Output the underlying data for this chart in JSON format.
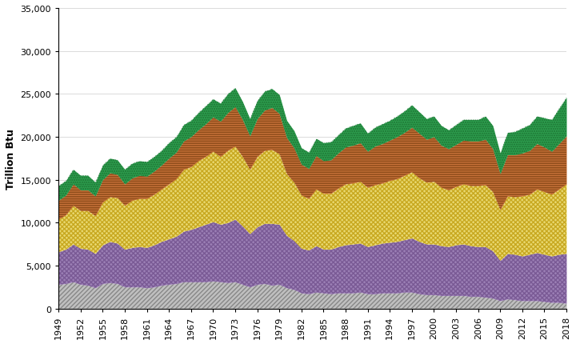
{
  "years": [
    1949,
    1950,
    1951,
    1952,
    1953,
    1954,
    1955,
    1956,
    1957,
    1958,
    1959,
    1960,
    1961,
    1962,
    1963,
    1964,
    1965,
    1966,
    1967,
    1968,
    1969,
    1970,
    1971,
    1972,
    1973,
    1974,
    1975,
    1976,
    1977,
    1978,
    1979,
    1980,
    1981,
    1982,
    1983,
    1984,
    1985,
    1986,
    1987,
    1988,
    1989,
    1990,
    1991,
    1992,
    1993,
    1994,
    1995,
    1996,
    1997,
    1998,
    1999,
    2000,
    2001,
    2002,
    2003,
    2004,
    2005,
    2006,
    2007,
    2008,
    2009,
    2010,
    2011,
    2012,
    2013,
    2014,
    2015,
    2016,
    2017,
    2018
  ],
  "coal": [
    2800,
    2900,
    3100,
    2800,
    2700,
    2400,
    2900,
    3000,
    2900,
    2500,
    2500,
    2500,
    2400,
    2500,
    2700,
    2800,
    2900,
    3100,
    3100,
    3100,
    3100,
    3200,
    3100,
    3000,
    3100,
    2800,
    2500,
    2800,
    2900,
    2700,
    2800,
    2400,
    2200,
    1800,
    1700,
    1900,
    1800,
    1700,
    1800,
    1800,
    1800,
    1900,
    1700,
    1700,
    1800,
    1800,
    1800,
    1900,
    1900,
    1700,
    1600,
    1600,
    1500,
    1500,
    1500,
    1500,
    1400,
    1400,
    1300,
    1200,
    900,
    1100,
    1000,
    900,
    900,
    900,
    800,
    700,
    700,
    600
  ],
  "petroleum": [
    3800,
    4000,
    4400,
    4200,
    4200,
    4000,
    4500,
    4800,
    4700,
    4400,
    4600,
    4700,
    4700,
    4900,
    5100,
    5300,
    5500,
    5900,
    6100,
    6400,
    6700,
    6900,
    6700,
    7000,
    7300,
    6800,
    6200,
    6700,
    7000,
    7200,
    7000,
    6100,
    5700,
    5200,
    5100,
    5400,
    5100,
    5200,
    5400,
    5600,
    5700,
    5700,
    5500,
    5700,
    5800,
    5900,
    6000,
    6100,
    6300,
    6100,
    5900,
    5900,
    5800,
    5700,
    5900,
    6000,
    5900,
    5800,
    5900,
    5500,
    4700,
    5300,
    5300,
    5200,
    5400,
    5600,
    5500,
    5400,
    5600,
    5800
  ],
  "natural_gas": [
    3800,
    4000,
    4500,
    4400,
    4500,
    4400,
    5000,
    5200,
    5300,
    5100,
    5500,
    5600,
    5700,
    5900,
    6100,
    6400,
    6700,
    7200,
    7300,
    7700,
    7900,
    8200,
    7900,
    8400,
    8500,
    8100,
    7500,
    8200,
    8500,
    8600,
    8200,
    7200,
    6800,
    6200,
    6000,
    6600,
    6500,
    6500,
    6800,
    7100,
    7100,
    7200,
    6900,
    7000,
    7000,
    7200,
    7300,
    7500,
    7700,
    7400,
    7200,
    7300,
    6800,
    6600,
    6800,
    7000,
    7000,
    7100,
    7200,
    6900,
    5900,
    6700,
    6700,
    7000,
    7000,
    7400,
    7300,
    7200,
    7600,
    8100
  ],
  "other_petro": [
    2200,
    2300,
    2500,
    2400,
    2400,
    2300,
    2600,
    2800,
    2700,
    2500,
    2600,
    2700,
    2600,
    2700,
    2800,
    3000,
    3100,
    3300,
    3500,
    3600,
    3800,
    4000,
    4100,
    4400,
    4600,
    4300,
    3900,
    4400,
    4700,
    4900,
    4700,
    4200,
    4000,
    3600,
    3500,
    3900,
    3800,
    3900,
    4100,
    4300,
    4400,
    4500,
    4200,
    4500,
    4600,
    4700,
    4900,
    5000,
    5200,
    5200,
    5000,
    5200,
    4900,
    4800,
    4900,
    5100,
    5200,
    5200,
    5300,
    5000,
    4200,
    4800,
    4900,
    5000,
    5100,
    5300,
    5200,
    5000,
    5300,
    5600
  ],
  "renewable": [
    1700,
    1700,
    1700,
    1700,
    1700,
    1600,
    1700,
    1700,
    1700,
    1700,
    1700,
    1700,
    1700,
    1700,
    1700,
    1800,
    1800,
    1900,
    1900,
    2000,
    2100,
    2100,
    2100,
    2200,
    2200,
    2100,
    2000,
    2100,
    2200,
    2200,
    2200,
    2000,
    2000,
    1900,
    1900,
    2000,
    2100,
    2100,
    2100,
    2200,
    2300,
    2300,
    2100,
    2200,
    2300,
    2300,
    2400,
    2500,
    2600,
    2500,
    2400,
    2400,
    2300,
    2200,
    2300,
    2400,
    2500,
    2500,
    2700,
    2700,
    2400,
    2600,
    2700,
    2900,
    3000,
    3200,
    3400,
    3700,
    4100,
    4500
  ],
  "ylabel": "Trillion Btu",
  "ylim": [
    0,
    35000
  ],
  "yticks": [
    0,
    5000,
    10000,
    15000,
    20000,
    25000,
    30000,
    35000
  ],
  "bg_color": "#ffffff",
  "layer_colors": [
    "#c0c0c0",
    "#9b7fb5",
    "#e8d870",
    "#c8723a",
    "#2e9e4f"
  ],
  "hatch_edgecolors": [
    "#888888",
    "#7a5a95",
    "#c8a820",
    "#8a4a18",
    "#1a7030"
  ],
  "hatch_styles": [
    "chevron",
    "greek",
    "diamond",
    "wave",
    "dots"
  ]
}
